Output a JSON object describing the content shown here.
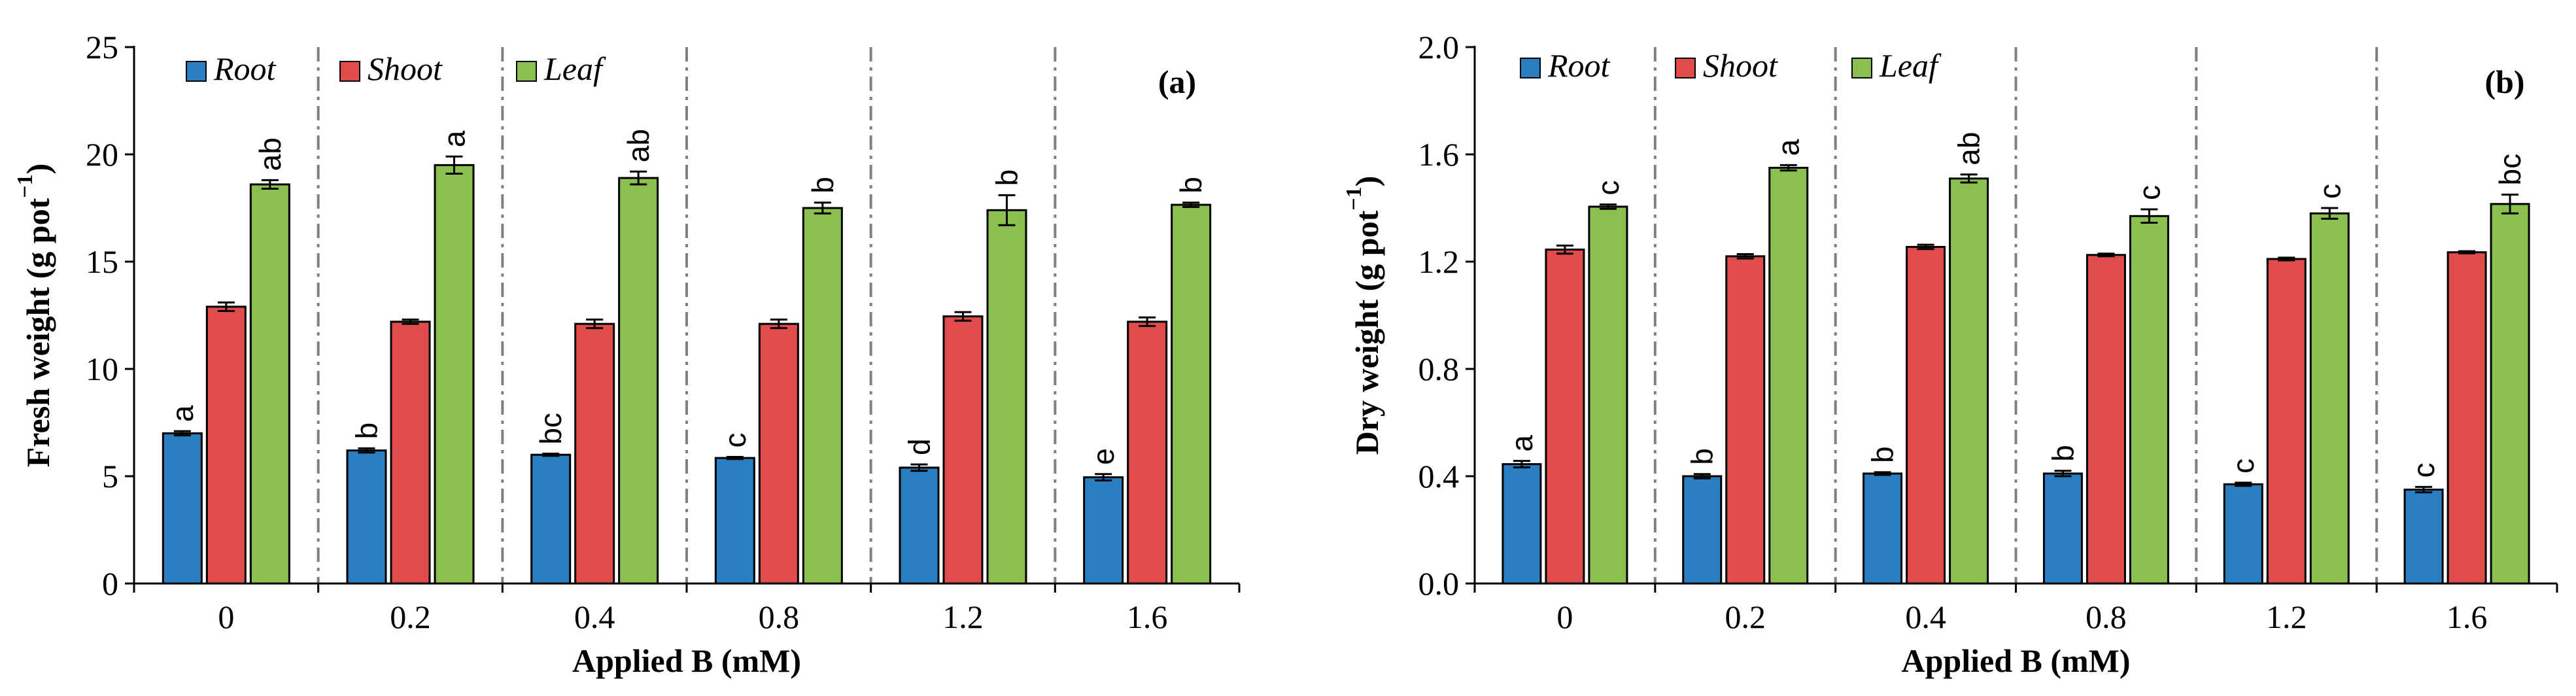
{
  "colors": {
    "root": "#2a7fc1",
    "shoot": "#e04b4b",
    "leaf": "#8bbf4f",
    "axis": "#000000",
    "divider": "#808080"
  },
  "chart_data": [
    {
      "type": "bar",
      "panel_label": "(a)",
      "xlabel": "Applied B (mM)",
      "ylabel_main": "Fresh weight (g pot",
      "ylabel_sup": "−1",
      "ylabel_close": ")",
      "ylim": [
        0,
        25
      ],
      "yticks": [
        "0",
        "5",
        "10",
        "15",
        "20",
        "25"
      ],
      "categories": [
        "0",
        "0.2",
        "0.4",
        "0.8",
        "1.2",
        "1.6"
      ],
      "legend_position": "top-left",
      "series": [
        {
          "name": "Root",
          "color_key": "root",
          "values": [
            7.0,
            6.2,
            6.0,
            5.85,
            5.4,
            4.95
          ],
          "errors": [
            0.1,
            0.1,
            0.05,
            0.05,
            0.15,
            0.15
          ],
          "letters": [
            "a",
            "b",
            "bc",
            "c",
            "d",
            "e"
          ]
        },
        {
          "name": "Shoot",
          "color_key": "shoot",
          "values": [
            12.9,
            12.2,
            12.1,
            12.1,
            12.45,
            12.2
          ],
          "errors": [
            0.2,
            0.1,
            0.2,
            0.2,
            0.2,
            0.2
          ],
          "letters": [
            "",
            "",
            "",
            "",
            "",
            ""
          ]
        },
        {
          "name": "Leaf",
          "color_key": "leaf",
          "values": [
            18.6,
            19.5,
            18.9,
            17.5,
            17.4,
            17.65
          ],
          "errors": [
            0.2,
            0.4,
            0.3,
            0.25,
            0.7,
            0.1
          ],
          "letters": [
            "ab",
            "a",
            "ab",
            "b",
            "b",
            "b"
          ]
        }
      ]
    },
    {
      "type": "bar",
      "panel_label": "(b)",
      "xlabel": "Applied B (mM)",
      "ylabel_main": "Dry weight (g pot",
      "ylabel_sup": "−1",
      "ylabel_close": ")",
      "ylim": [
        0,
        2.0
      ],
      "yticks": [
        "0.0",
        "0.4",
        "0.8",
        "1.2",
        "1.6",
        "2.0"
      ],
      "categories": [
        "0",
        "0.2",
        "0.4",
        "0.8",
        "1.2",
        "1.6"
      ],
      "legend_position": "top-left",
      "series": [
        {
          "name": "Root",
          "color_key": "root",
          "values": [
            0.445,
            0.4,
            0.41,
            0.41,
            0.37,
            0.35
          ],
          "errors": [
            0.012,
            0.008,
            0.005,
            0.01,
            0.006,
            0.01
          ],
          "letters": [
            "a",
            "b",
            "b",
            "b",
            "c",
            "c"
          ]
        },
        {
          "name": "Shoot",
          "color_key": "shoot",
          "values": [
            1.245,
            1.22,
            1.255,
            1.225,
            1.21,
            1.235
          ],
          "errors": [
            0.015,
            0.008,
            0.008,
            0.005,
            0.005,
            0.004
          ],
          "letters": [
            "",
            "",
            "",
            "",
            "",
            ""
          ]
        },
        {
          "name": "Leaf",
          "color_key": "leaf",
          "values": [
            1.405,
            1.55,
            1.51,
            1.37,
            1.38,
            1.415
          ],
          "errors": [
            0.008,
            0.01,
            0.015,
            0.025,
            0.02,
            0.035
          ],
          "letters": [
            "c",
            "a",
            "ab",
            "c",
            "c",
            "bc"
          ]
        }
      ]
    }
  ]
}
